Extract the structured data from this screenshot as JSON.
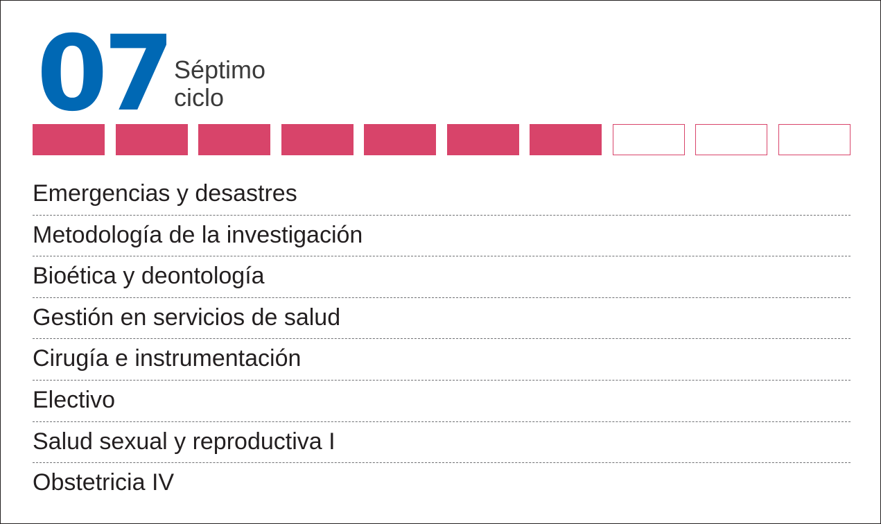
{
  "header": {
    "number": "07",
    "label_line1": "Séptimo",
    "label_line2": "ciclo"
  },
  "progress": {
    "total_segments": 10,
    "completed_segments": 7,
    "filled_color": "#d8446a",
    "empty_color": "#ffffff"
  },
  "colors": {
    "number": "#0068b4",
    "accent": "#d8446a",
    "text": "#231f20"
  },
  "courses": [
    "Emergencias y desastres",
    "Metodología de la investigación",
    "Bioética y deontología",
    "Gestión en servicios de salud",
    "Cirugía e instrumentación",
    "Electivo",
    "Salud sexual y reproductiva I",
    "Obstetricia IV"
  ]
}
